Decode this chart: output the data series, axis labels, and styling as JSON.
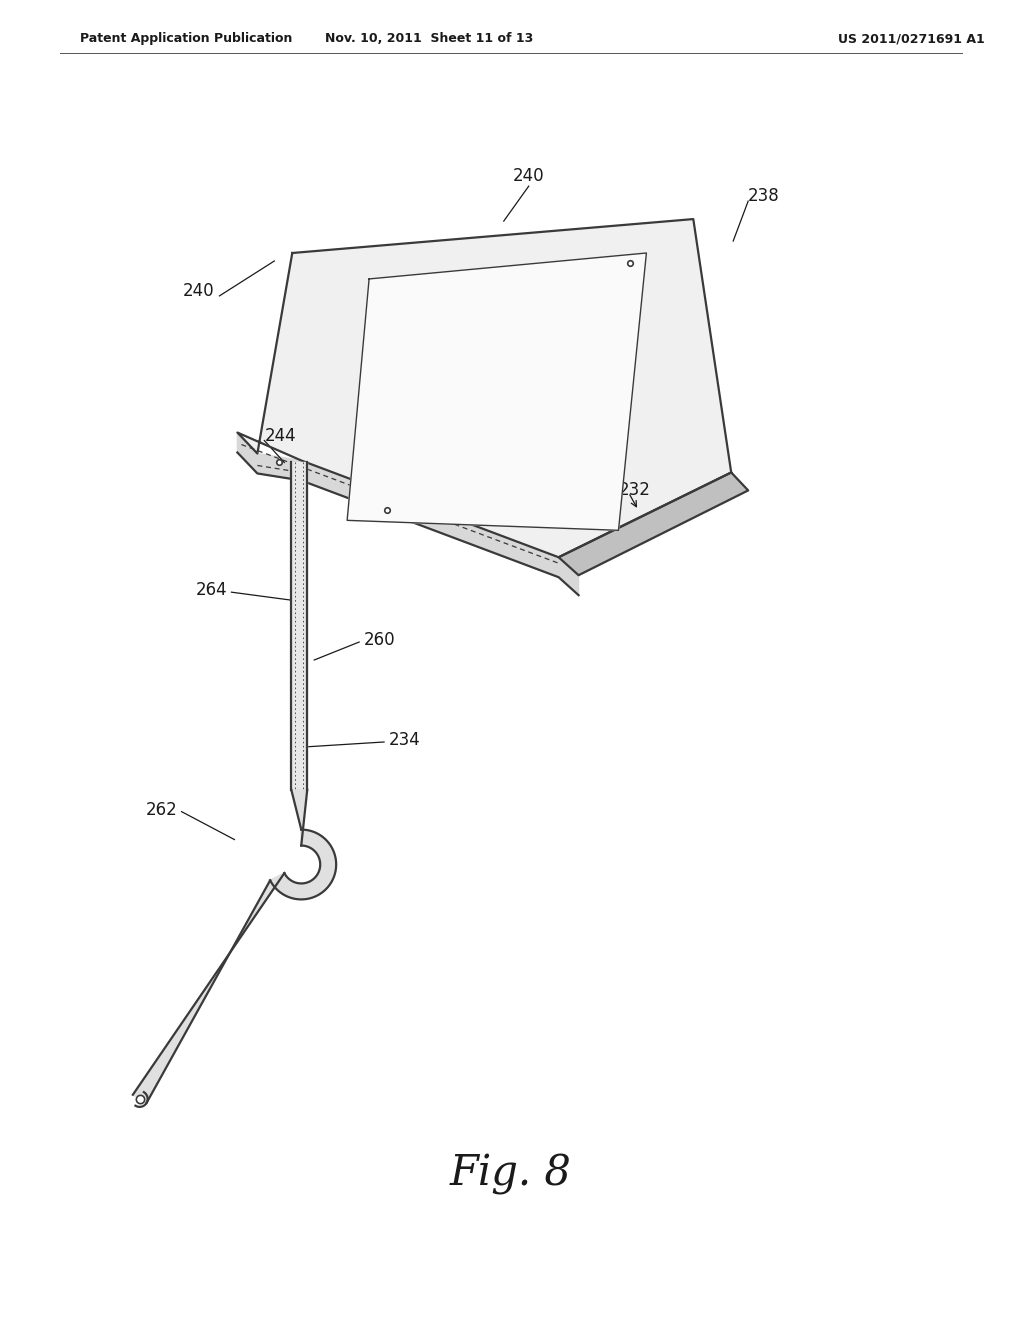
{
  "background_color": "#ffffff",
  "header_left": "Patent Application Publication",
  "header_mid": "Nov. 10, 2011  Sheet 11 of 13",
  "header_right": "US 2011/0271691 A1",
  "figure_label": "Fig. 8",
  "line_color": "#3a3a3a",
  "fill_top": "#f0f0f0",
  "fill_side": "#c0c0c0",
  "fill_front": "#d8d8d8",
  "fill_inner": "#fafafa"
}
